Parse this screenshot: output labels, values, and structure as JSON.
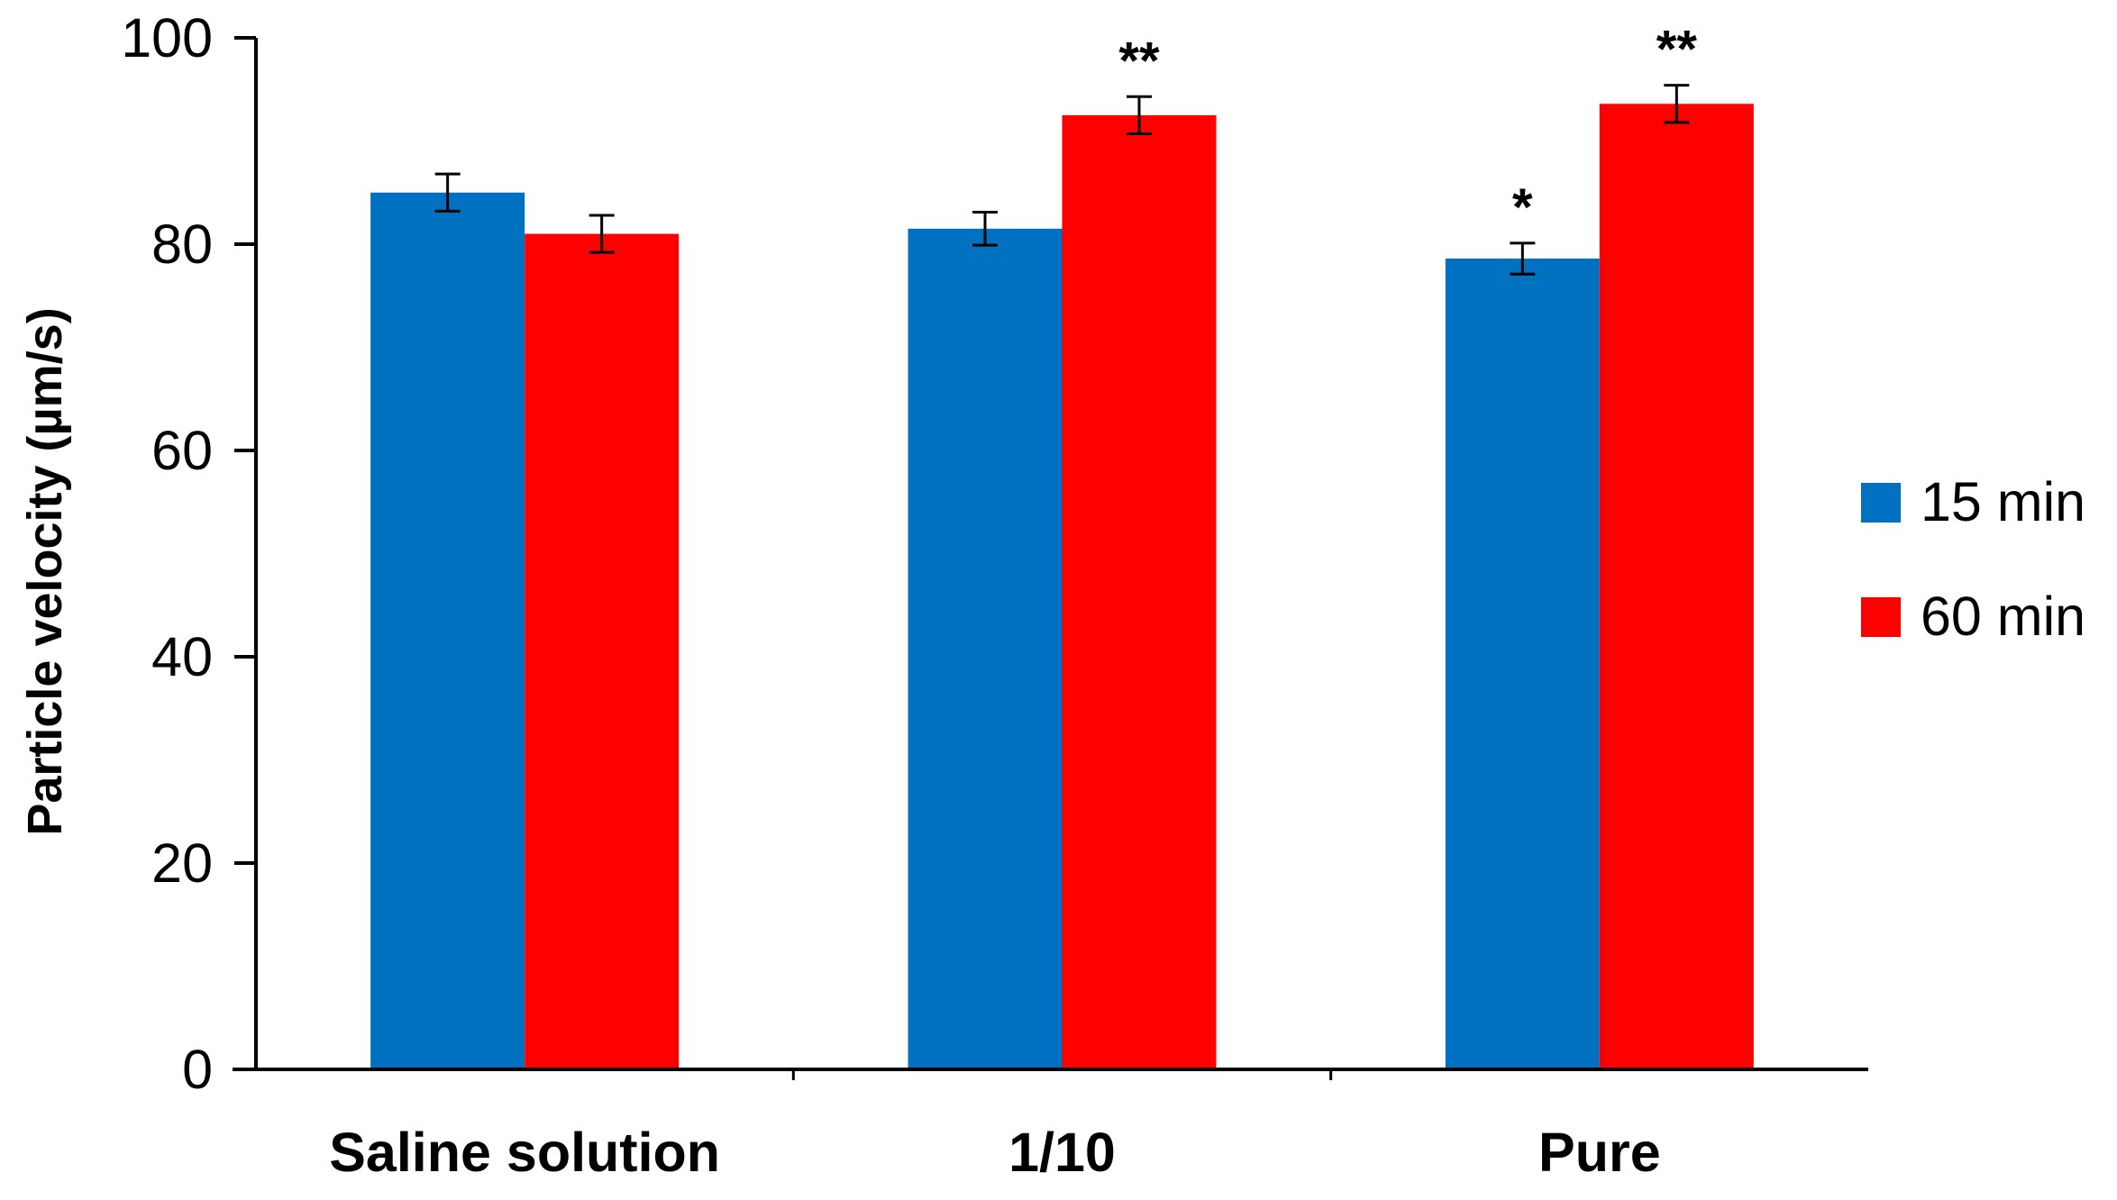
{
  "chart_data": {
    "type": "bar",
    "title": "",
    "xlabel": "",
    "ylabel": "Particle velocity (µm/s)",
    "ylim": [
      0,
      100
    ],
    "yticks": [
      0,
      20,
      40,
      60,
      80,
      100
    ],
    "grid": false,
    "legend_position": "right",
    "categories": [
      "Saline solution",
      "1/10",
      "Pure"
    ],
    "series": [
      {
        "name": "15 min",
        "color": "#0070C0",
        "values": [
          85.0,
          81.5,
          78.6
        ],
        "errors": [
          1.8,
          1.6,
          1.5
        ],
        "annotations": [
          "",
          "",
          "*"
        ]
      },
      {
        "name": "60 min",
        "color": "#FF0000",
        "values": [
          81.0,
          92.5,
          93.6
        ],
        "errors": [
          1.8,
          1.8,
          1.8
        ],
        "annotations": [
          "",
          "**",
          "**"
        ]
      }
    ]
  }
}
